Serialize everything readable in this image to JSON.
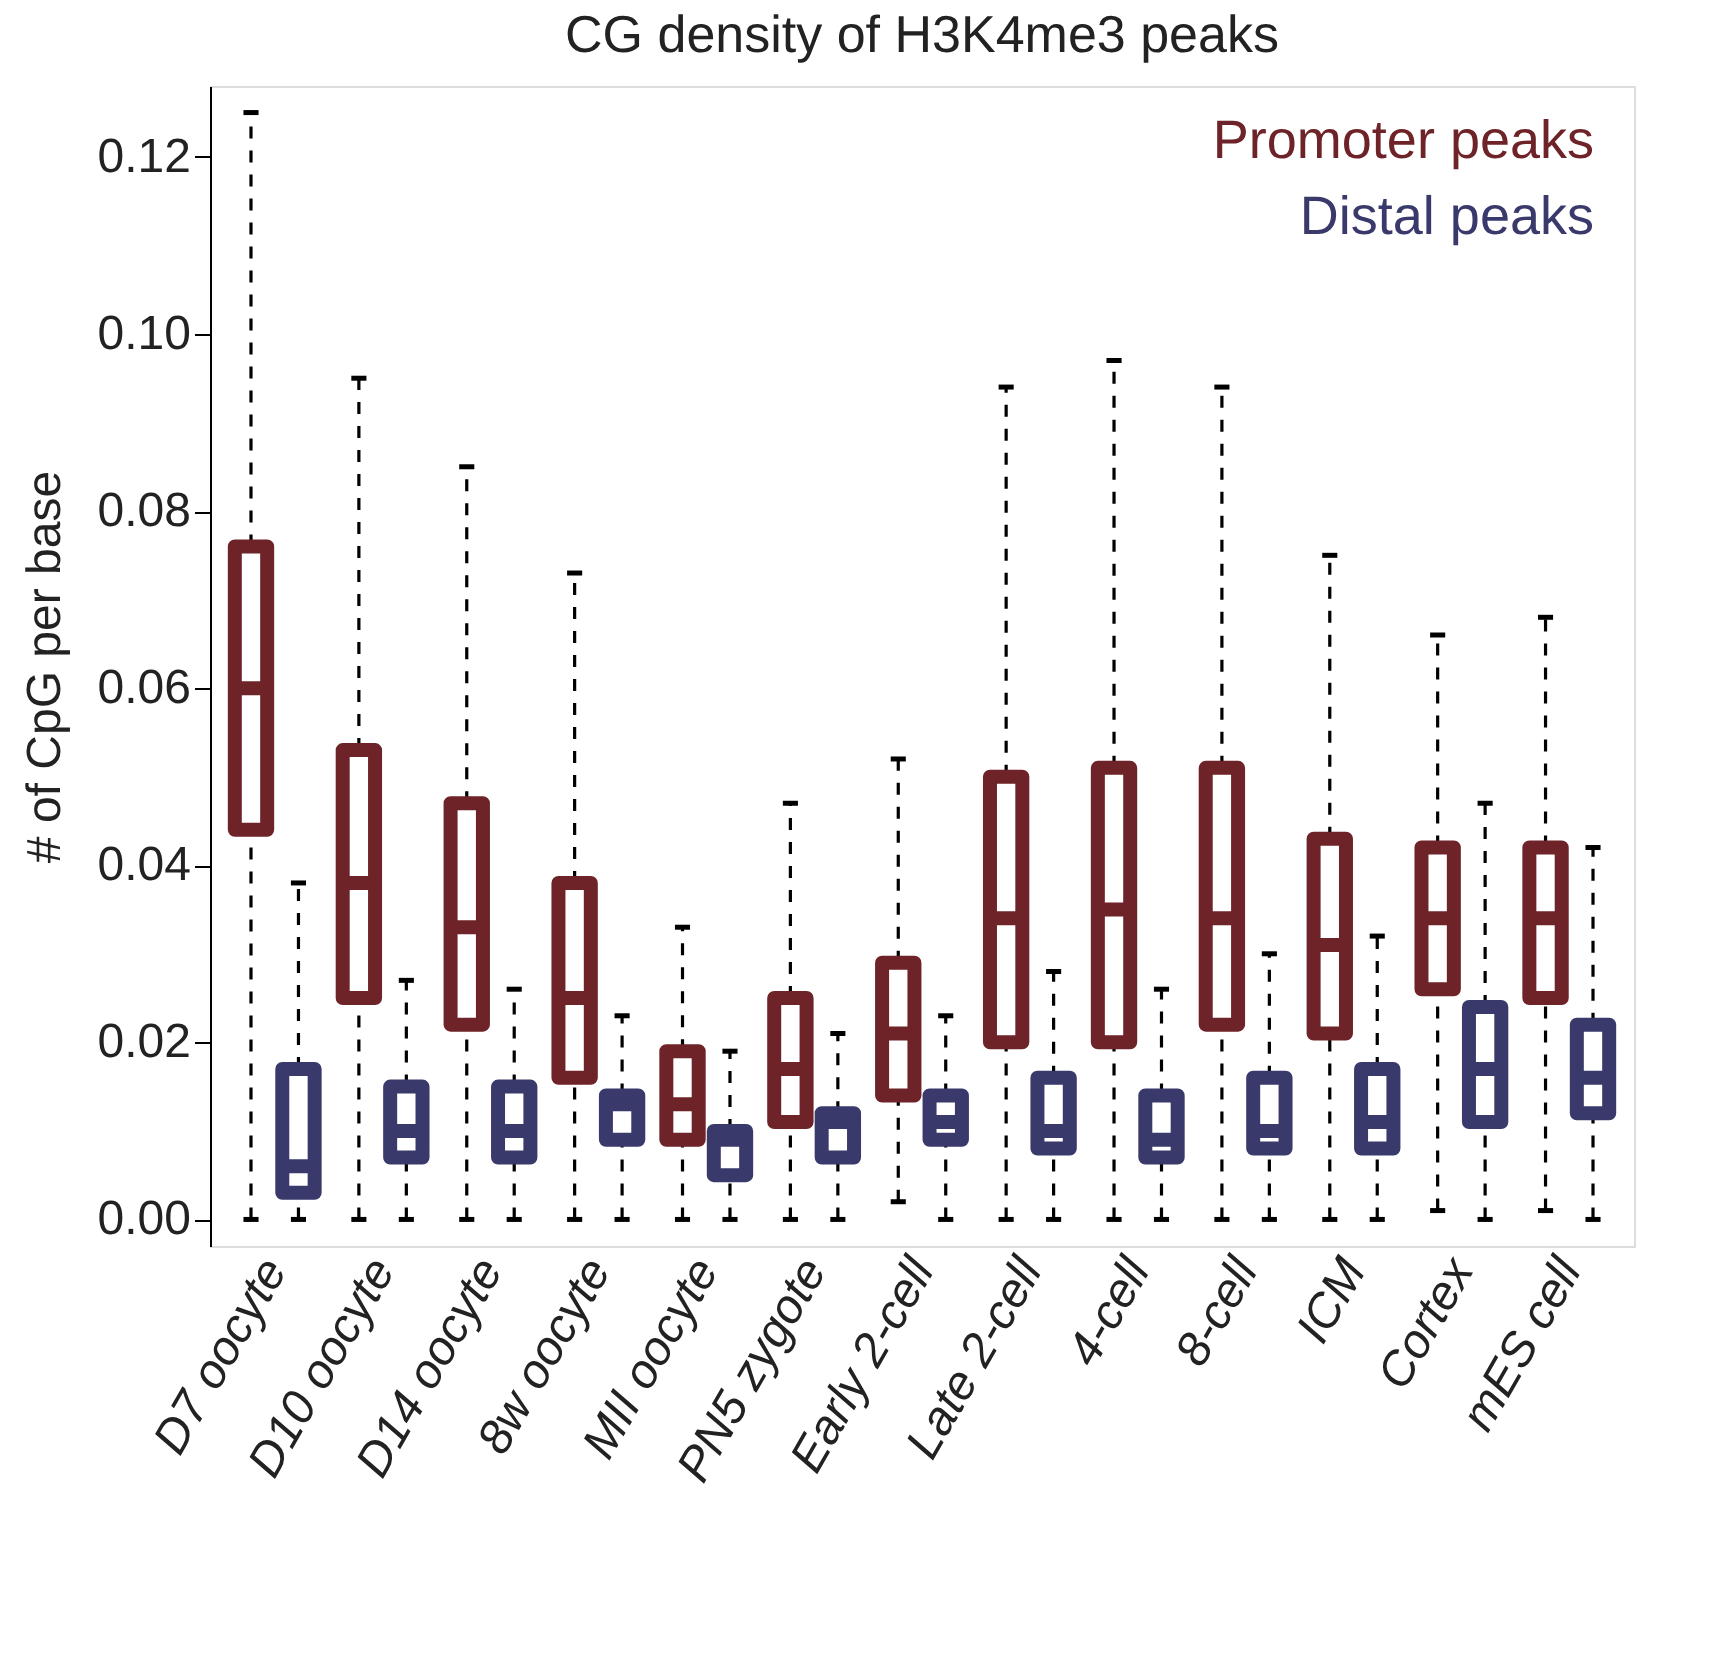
{
  "chart_data": {
    "type": "box",
    "title": "CG density of H3K4me3 peaks",
    "ylabel": "# of CpG per base",
    "categories": [
      "D7 oocyte",
      "D10 oocyte",
      "D14 oocyte",
      "8w oocyte",
      "MII oocyte",
      "PN5 zygote",
      "Early 2-cell",
      "Late 2-cell",
      "4-cell",
      "8-cell",
      "ICM",
      "Cortex",
      "mES cell"
    ],
    "ylim": [
      -0.003,
      0.128
    ],
    "yticks": [
      {
        "value": 0,
        "label": "0.00"
      },
      {
        "value": 0.02,
        "label": "0.02"
      },
      {
        "value": 0.04,
        "label": "0.04"
      },
      {
        "value": 0.06,
        "label": "0.06"
      },
      {
        "value": 0.08,
        "label": "0.08"
      },
      {
        "value": 0.1,
        "label": "0.10"
      },
      {
        "value": 0.12,
        "label": "0.12"
      }
    ],
    "grid": false,
    "legend": "top right",
    "series": [
      {
        "name": "Promoter peaks",
        "color": "#6e2328",
        "boxes": [
          {
            "low": 0.0,
            "q1": 0.044,
            "median": 0.06,
            "q3": 0.076,
            "high": 0.125
          },
          {
            "low": 0.0,
            "q1": 0.025,
            "median": 0.038,
            "q3": 0.053,
            "high": 0.095
          },
          {
            "low": 0.0,
            "q1": 0.022,
            "median": 0.033,
            "q3": 0.047,
            "high": 0.085
          },
          {
            "low": 0.0,
            "q1": 0.016,
            "median": 0.025,
            "q3": 0.038,
            "high": 0.073
          },
          {
            "low": 0.0,
            "q1": 0.009,
            "median": 0.013,
            "q3": 0.019,
            "high": 0.033
          },
          {
            "low": 0.0,
            "q1": 0.011,
            "median": 0.017,
            "q3": 0.025,
            "high": 0.047
          },
          {
            "low": 0.002,
            "q1": 0.014,
            "median": 0.021,
            "q3": 0.029,
            "high": 0.052
          },
          {
            "low": 0.0,
            "q1": 0.02,
            "median": 0.034,
            "q3": 0.05,
            "high": 0.094
          },
          {
            "low": 0.0,
            "q1": 0.02,
            "median": 0.035,
            "q3": 0.051,
            "high": 0.097
          },
          {
            "low": 0.0,
            "q1": 0.022,
            "median": 0.034,
            "q3": 0.051,
            "high": 0.094
          },
          {
            "low": 0.0,
            "q1": 0.021,
            "median": 0.031,
            "q3": 0.043,
            "high": 0.075
          },
          {
            "low": 0.001,
            "q1": 0.026,
            "median": 0.034,
            "q3": 0.042,
            "high": 0.066
          },
          {
            "low": 0.001,
            "q1": 0.025,
            "median": 0.034,
            "q3": 0.042,
            "high": 0.068
          }
        ]
      },
      {
        "name": "Distal peaks",
        "color": "#393a6b",
        "boxes": [
          {
            "low": 0.0,
            "q1": 0.003,
            "median": 0.006,
            "q3": 0.017,
            "high": 0.038
          },
          {
            "low": 0.0,
            "q1": 0.007,
            "median": 0.01,
            "q3": 0.015,
            "high": 0.027
          },
          {
            "low": 0.0,
            "q1": 0.007,
            "median": 0.01,
            "q3": 0.015,
            "high": 0.026
          },
          {
            "low": 0.0,
            "q1": 0.009,
            "median": 0.013,
            "q3": 0.014,
            "high": 0.023
          },
          {
            "low": 0.0,
            "q1": 0.005,
            "median": 0.009,
            "q3": 0.01,
            "high": 0.019
          },
          {
            "low": 0.0,
            "q1": 0.007,
            "median": 0.011,
            "q3": 0.012,
            "high": 0.021
          },
          {
            "low": 0.0,
            "q1": 0.009,
            "median": 0.011,
            "q3": 0.014,
            "high": 0.023
          },
          {
            "low": 0.0,
            "q1": 0.008,
            "median": 0.01,
            "q3": 0.016,
            "high": 0.028
          },
          {
            "low": 0.0,
            "q1": 0.007,
            "median": 0.009,
            "q3": 0.014,
            "high": 0.026
          },
          {
            "low": 0.0,
            "q1": 0.008,
            "median": 0.01,
            "q3": 0.016,
            "high": 0.03
          },
          {
            "low": 0.0,
            "q1": 0.008,
            "median": 0.011,
            "q3": 0.017,
            "high": 0.032
          },
          {
            "low": 0.0,
            "q1": 0.011,
            "median": 0.017,
            "q3": 0.024,
            "high": 0.047
          },
          {
            "low": 0.0,
            "q1": 0.012,
            "median": 0.016,
            "q3": 0.022,
            "high": 0.042
          }
        ]
      }
    ]
  }
}
